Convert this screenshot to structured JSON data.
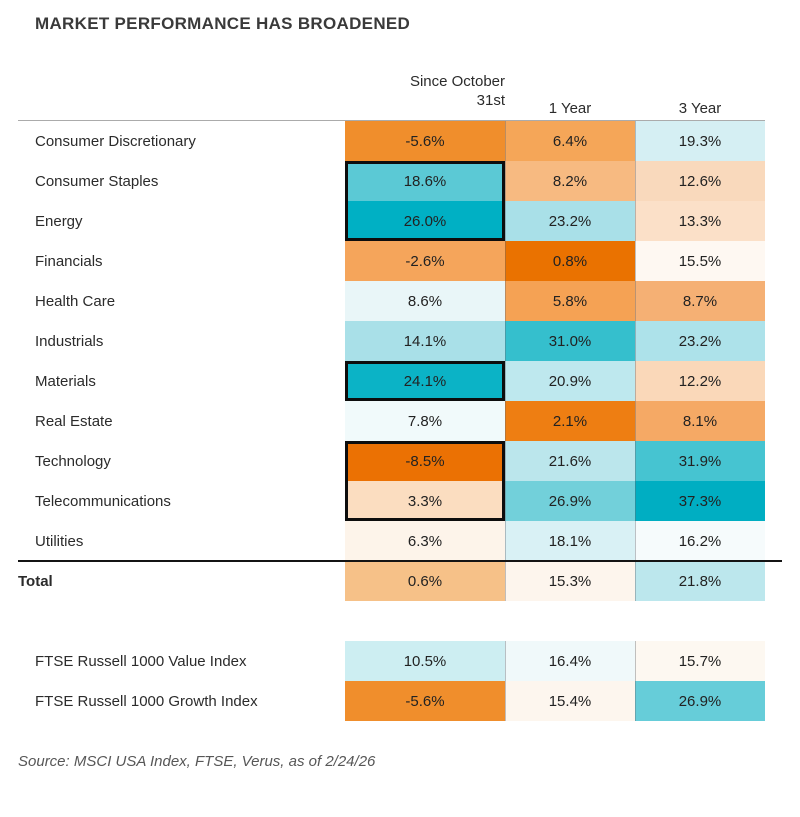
{
  "title": "MARKET PERFORMANCE HAS BROADENED",
  "header": {
    "line1": "Since October",
    "line2": "31st",
    "col2": "1 Year",
    "col3": "3 Year"
  },
  "source": "Source: MSCI USA Index, FTSE, Verus, as of 2/24/26",
  "palette": {
    "low": "#EA7200",
    "mid": "#FFFFFF",
    "high": "#00AEC2",
    "box_outline": "#0D0D0D",
    "header_rule": "#ABABAB",
    "total_rule": "#141414"
  },
  "chart_data": {
    "type": "heatmap",
    "title": "MARKET PERFORMANCE HAS BROADENED",
    "columns": [
      "Since October 31st",
      "1 Year",
      "3 Year"
    ],
    "rows": [
      {
        "label": "Consumer Discretionary",
        "values": [
          -5.6,
          6.4,
          19.3
        ],
        "display": [
          "-5.6%",
          "6.4%",
          "19.3%"
        ],
        "colors": [
          "#F08E2C",
          "#F5A658",
          "#D5EFF3"
        ],
        "boxes": [
          [],
          [],
          []
        ]
      },
      {
        "label": "Consumer Staples",
        "values": [
          18.6,
          8.2,
          12.6
        ],
        "display": [
          "18.6%",
          "8.2%",
          "12.6%"
        ],
        "colors": [
          "#5BC9D5",
          "#F7BA81",
          "#F9D9BC"
        ],
        "boxes": [
          [
            "top",
            "left",
            "right"
          ],
          [],
          []
        ]
      },
      {
        "label": "Energy",
        "values": [
          26.0,
          23.2,
          13.3
        ],
        "display": [
          "26.0%",
          "23.2%",
          "13.3%"
        ],
        "colors": [
          "#00B0C4",
          "#A9E0E8",
          "#FBE0C8"
        ],
        "boxes": [
          [
            "left",
            "right",
            "bottom"
          ],
          [],
          []
        ]
      },
      {
        "label": "Financials",
        "values": [
          -2.6,
          0.8,
          15.5
        ],
        "display": [
          "-2.6%",
          "0.8%",
          "15.5%"
        ],
        "colors": [
          "#F5A55B",
          "#EA7200",
          "#FEF8F2"
        ],
        "boxes": [
          [],
          [],
          []
        ]
      },
      {
        "label": "Health Care",
        "values": [
          8.6,
          5.8,
          8.7
        ],
        "display": [
          "8.6%",
          "5.8%",
          "8.7%"
        ],
        "colors": [
          "#E9F6F8",
          "#F5A254",
          "#F5B074"
        ],
        "boxes": [
          [],
          [],
          []
        ]
      },
      {
        "label": "Industrials",
        "values": [
          14.1,
          31.0,
          23.2
        ],
        "display": [
          "14.1%",
          "31.0%",
          "23.2%"
        ],
        "colors": [
          "#A9E0E8",
          "#35BFCD",
          "#ADE2EA"
        ],
        "boxes": [
          [],
          [],
          []
        ]
      },
      {
        "label": "Materials",
        "values": [
          24.1,
          20.9,
          12.2
        ],
        "display": [
          "24.1%",
          "20.9%",
          "12.2%"
        ],
        "colors": [
          "#0BB3C6",
          "#BEE8EE",
          "#FAD8B9"
        ],
        "boxes": [
          [
            "top",
            "left",
            "right",
            "bottom"
          ],
          [],
          []
        ]
      },
      {
        "label": "Real Estate",
        "values": [
          7.8,
          2.1,
          8.1
        ],
        "display": [
          "7.8%",
          "2.1%",
          "8.1%"
        ],
        "colors": [
          "#F1FAFB",
          "#EE7E12",
          "#F5A965"
        ],
        "boxes": [
          [],
          [],
          []
        ]
      },
      {
        "label": "Technology",
        "values": [
          -8.5,
          21.6,
          31.9
        ],
        "display": [
          "-8.5%",
          "21.6%",
          "31.9%"
        ],
        "colors": [
          "#EB7103",
          "#BBE6EC",
          "#46C4D1"
        ],
        "boxes": [
          [
            "top",
            "left",
            "right"
          ],
          [],
          []
        ]
      },
      {
        "label": "Telecommunications",
        "values": [
          3.3,
          26.9,
          37.3
        ],
        "display": [
          "3.3%",
          "26.9%",
          "37.3%"
        ],
        "colors": [
          "#FBDDC0",
          "#72D0DA",
          "#00AEC2"
        ],
        "boxes": [
          [
            "left",
            "right",
            "bottom"
          ],
          [],
          []
        ]
      },
      {
        "label": "Utilities",
        "values": [
          6.3,
          18.1,
          16.2
        ],
        "display": [
          "6.3%",
          "18.1%",
          "16.2%"
        ],
        "colors": [
          "#FDF4EA",
          "#D9F1F5",
          "#F6FBFC"
        ],
        "boxes": [
          [],
          [],
          []
        ]
      }
    ],
    "total": {
      "label": "Total",
      "values": [
        0.6,
        15.3,
        21.8
      ],
      "display": [
        "0.6%",
        "15.3%",
        "21.8%"
      ],
      "colors": [
        "#F6C188",
        "#FDF5ED",
        "#BCE7ED"
      ]
    },
    "index_rows": [
      {
        "label": "FTSE Russell 1000 Value Index",
        "values": [
          10.5,
          16.4,
          15.7
        ],
        "display": [
          "10.5%",
          "16.4%",
          "15.7%"
        ],
        "colors": [
          "#CDEEF2",
          "#F0F9FA",
          "#FDF8F1"
        ]
      },
      {
        "label": "FTSE Russell 1000 Growth Index",
        "values": [
          -5.6,
          15.4,
          26.9
        ],
        "display": [
          "-5.6%",
          "15.4%",
          "26.9%"
        ],
        "colors": [
          "#F08E2C",
          "#FDF6EE",
          "#66CDD9"
        ]
      }
    ],
    "highlight_boxes_note": "black outlines on Since October 31st column: Consumer Staples+Energy, Materials, Technology+Telecommunications"
  }
}
